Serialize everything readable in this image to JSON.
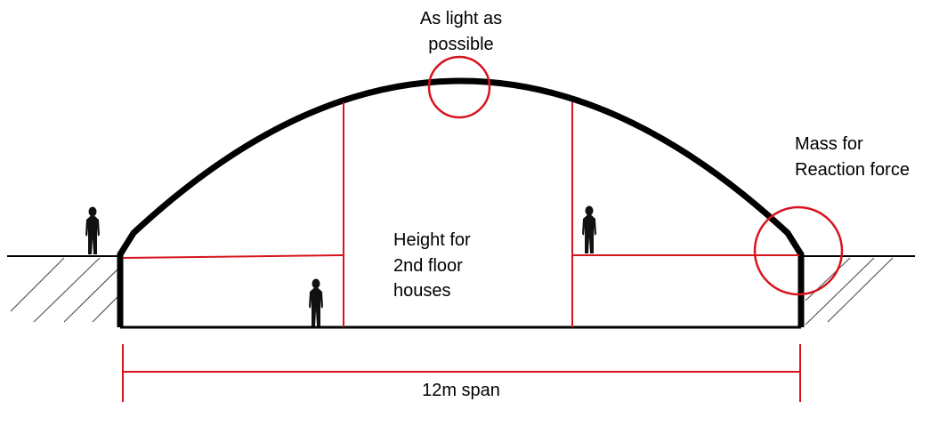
{
  "labels": {
    "top_line1": "As light as",
    "top_line2": "possible",
    "right_line1": "Mass for",
    "right_line2": "Reaction force",
    "center_line1": "Height for",
    "center_line2": "2nd floor",
    "center_line3": "houses",
    "span": "12m span"
  },
  "colors": {
    "structure": "#000000",
    "annotation": "#d7141e",
    "hatch": "#555555"
  },
  "figures": [
    "person-silhouette",
    "person-silhouette",
    "person-silhouette"
  ]
}
